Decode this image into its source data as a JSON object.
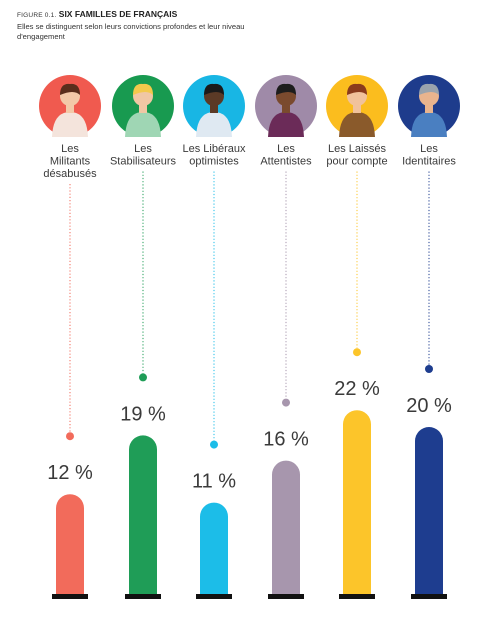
{
  "figure": {
    "number": "FIGURE 0.1.",
    "title": "SIX FAMILLES DE FRANÇAIS",
    "subtitle": "Elles se distinguent selon leurs convictions profondes et leur niveau d'engagement"
  },
  "chart_data": {
    "type": "bar",
    "title": "SIX FAMILLES DE FRANÇAIS",
    "subtitle": "Elles se distinguent selon leurs convictions profondes et leur niveau d'engagement",
    "categories": [
      [
        "Les",
        "Militants",
        "désabusés"
      ],
      [
        "Les",
        "Stabilisateurs"
      ],
      [
        "Les Libéraux",
        "optimistes"
      ],
      [
        "Les",
        "Attentistes"
      ],
      [
        "Les Laissés",
        "pour compte"
      ],
      [
        "Les",
        "Identitaires"
      ]
    ],
    "values": [
      12,
      19,
      11,
      16,
      22,
      20
    ],
    "value_labels": [
      "12 %",
      "19 %",
      "11 %",
      "16 %",
      "22 %",
      "20 %"
    ],
    "colors": [
      "#f26b5b",
      "#1f9d57",
      "#1cbde8",
      "#a796ad",
      "#fcc52a",
      "#1e3d8f"
    ],
    "avatar_bg": [
      "#f05a4f",
      "#189a50",
      "#18b6e4",
      "#9f8aa8",
      "#fbbd1e",
      "#1e3c8c"
    ],
    "icons": [
      "militant-person-icon",
      "stabilisateur-person-icon",
      "liberal-person-icon",
      "attentiste-person-icon",
      "laisse-person-icon",
      "identitaire-person-icon"
    ],
    "grid": false,
    "legend": "none"
  }
}
